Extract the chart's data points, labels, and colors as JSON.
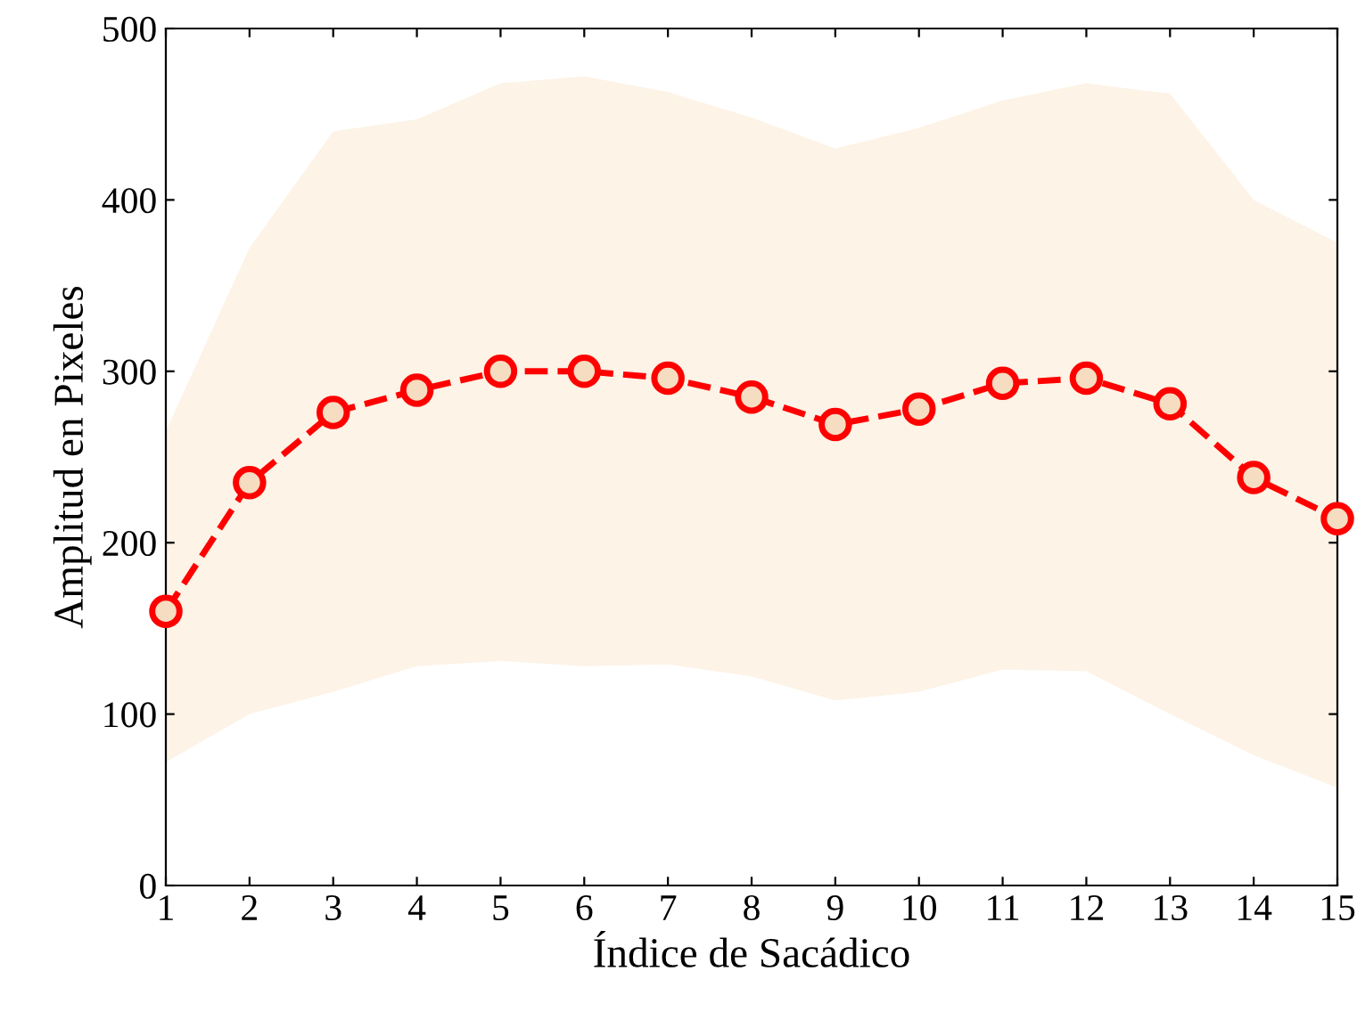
{
  "chart_data": {
    "type": "line",
    "xlabel": "Índice de Sacádico",
    "ylabel": "Amplitud en Pixeles",
    "x": [
      1,
      2,
      3,
      4,
      5,
      6,
      7,
      8,
      9,
      10,
      11,
      12,
      13,
      14,
      15
    ],
    "series": [
      {
        "color": "#ff0000",
        "values": [
          160,
          235,
          276,
          289,
          300,
          300,
          296,
          285,
          269,
          278,
          293,
          296,
          281,
          238,
          214
        ],
        "lower": [
          72,
          100,
          113,
          128,
          131,
          128,
          129,
          122,
          108,
          113,
          126,
          125,
          100,
          76,
          57
        ],
        "upper": [
          265,
          372,
          440,
          447,
          468,
          472,
          463,
          448,
          430,
          442,
          458,
          468,
          462,
          400,
          375
        ]
      }
    ],
    "xlim": [
      1,
      15
    ],
    "xticks": [
      1,
      2,
      3,
      4,
      5,
      6,
      7,
      8,
      9,
      10,
      11,
      12,
      13,
      14,
      15
    ],
    "ylim": [
      0,
      500
    ],
    "yticks": [
      0,
      100,
      200,
      300,
      400,
      500
    ],
    "grid": false,
    "legend": false,
    "marker": "circle",
    "line_style": "dashed"
  }
}
